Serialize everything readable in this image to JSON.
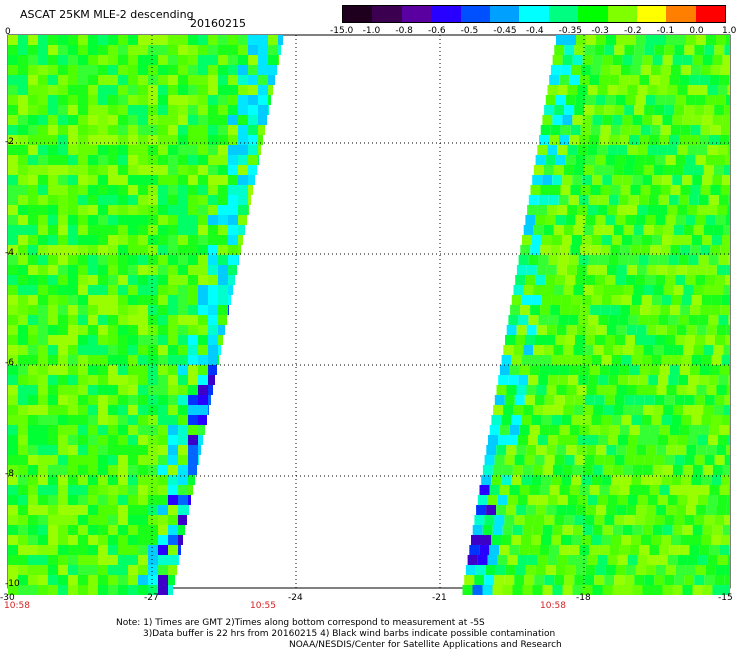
{
  "header": {
    "title": "ASCAT 25KM MLE-2 descending",
    "date": "20160215"
  },
  "colorbar": {
    "labels": [
      "-15.0",
      "-1.0",
      "-0.8",
      "-0.6",
      "-0.5",
      "-0.45",
      "-0.4",
      "-0.35",
      "-0.3",
      "-0.2",
      "-0.1",
      "0.0",
      "1.0"
    ],
    "colors": [
      "#1e001e",
      "#3c0050",
      "#5a00a0",
      "#2800ff",
      "#0050ff",
      "#00a0ff",
      "#00ffff",
      "#00ff80",
      "#00ff00",
      "#80ff00",
      "#ffff00",
      "#ff8000",
      "#ff0000"
    ]
  },
  "axes": {
    "x_ticks": [
      "-30",
      "-27",
      "-24",
      "-21",
      "-18",
      "-15"
    ],
    "y_ticks": [
      "0",
      "-2",
      "-4",
      "-6",
      "-8",
      "-10"
    ]
  },
  "times": [
    "10:58",
    "10:55",
    "10:58"
  ],
  "notes": {
    "line1": "Note: 1) Times are GMT 2)Times along bottom correspond to measurement at -5S",
    "line2": "3)Data buffer is 22 hrs from 20160215 4) Black wind barbs indicate possible contamination",
    "line3": "NOAA/NESDIS/Center for Satellite Applications and Research"
  }
}
